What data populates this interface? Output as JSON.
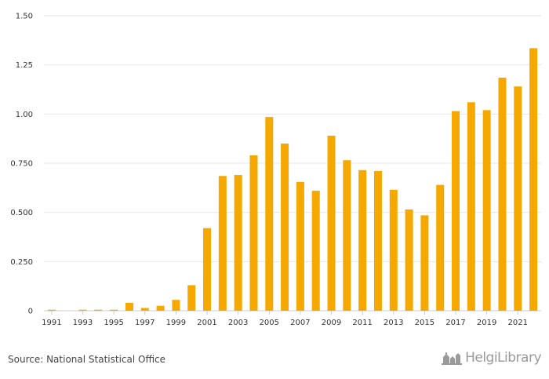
{
  "chart_data": {
    "type": "bar",
    "title": "",
    "xlabel": "",
    "ylabel": "",
    "ylim": [
      0,
      1.5
    ],
    "y_ticks": [
      "0",
      "0.250",
      "0.500",
      "0.750",
      "1.00",
      "1.25",
      "1.50"
    ],
    "x_tick_labels": [
      "1991",
      "1993",
      "1995",
      "1997",
      "1999",
      "2001",
      "2003",
      "2005",
      "2007",
      "2009",
      "2011",
      "2013",
      "2015",
      "2017",
      "2019",
      "2021"
    ],
    "categories": [
      "1991",
      "1992",
      "1993",
      "1994",
      "1995",
      "1996",
      "1997",
      "1998",
      "1999",
      "2000",
      "2001",
      "2002",
      "2003",
      "2004",
      "2005",
      "2006",
      "2007",
      "2008",
      "2009",
      "2010",
      "2011",
      "2012",
      "2013",
      "2014",
      "2015",
      "2016",
      "2017",
      "2018",
      "2019",
      "2020",
      "2021",
      "2022"
    ],
    "values": [
      0.005,
      0,
      0.005,
      0.005,
      0.005,
      0.04,
      0.014,
      0.025,
      0.055,
      0.13,
      0.42,
      0.685,
      0.69,
      0.79,
      0.985,
      0.85,
      0.655,
      0.61,
      0.89,
      0.765,
      0.715,
      0.71,
      0.615,
      0.515,
      0.485,
      0.64,
      1.015,
      1.06,
      1.02,
      1.185,
      1.14,
      1.335
    ],
    "bar_color": "#F5A800",
    "grid": true
  },
  "footer": {
    "source": "Source: National Statistical Office",
    "logo_text": "HelgiLibrary"
  },
  "colors": {
    "bar": "#F5A800",
    "grid": "#e6e6e6",
    "axis": "#cccccc",
    "text": "#333333",
    "logo": "#9a9a9a"
  }
}
